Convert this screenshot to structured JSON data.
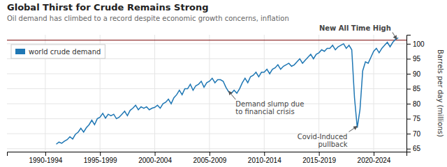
{
  "chart_data": {
    "type": "line",
    "title": "Global Thirst for Crude Remains Strong",
    "subtitle": "Oil demand has climbed to a record despite economic growth concerns, inflation",
    "ylabel": "Barrels per day (millions)",
    "x": [
      1993.0,
      1993.25,
      1993.5,
      1993.75,
      1994.0,
      1994.25,
      1994.5,
      1994.75,
      1995.0,
      1995.25,
      1995.5,
      1995.75,
      1996.0,
      1996.25,
      1996.5,
      1996.75,
      1997.0,
      1997.25,
      1997.5,
      1997.75,
      1998.0,
      1998.25,
      1998.5,
      1998.75,
      1999.0,
      1999.25,
      1999.5,
      1999.75,
      2000.0,
      2000.25,
      2000.5,
      2000.75,
      2001.0,
      2001.25,
      2001.5,
      2001.75,
      2002.0,
      2002.25,
      2002.5,
      2002.75,
      2003.0,
      2003.25,
      2003.5,
      2003.75,
      2004.0,
      2004.25,
      2004.5,
      2004.75,
      2005.0,
      2005.25,
      2005.5,
      2005.75,
      2006.0,
      2006.25,
      2006.5,
      2006.75,
      2007.0,
      2007.25,
      2007.5,
      2007.75,
      2008.0,
      2008.25,
      2008.5,
      2008.75,
      2009.0,
      2009.25,
      2009.5,
      2009.75,
      2010.0,
      2010.25,
      2010.5,
      2010.75,
      2011.0,
      2011.25,
      2011.5,
      2011.75,
      2012.0,
      2012.25,
      2012.5,
      2012.75,
      2013.0,
      2013.25,
      2013.5,
      2013.75,
      2014.0,
      2014.25,
      2014.5,
      2014.75,
      2015.0,
      2015.25,
      2015.5,
      2015.75,
      2016.0,
      2016.25,
      2016.5,
      2016.75,
      2017.0,
      2017.25,
      2017.5,
      2017.75,
      2018.0,
      2018.25,
      2018.5,
      2018.75,
      2019.0,
      2019.25,
      2019.5,
      2019.75,
      2020.0,
      2020.25,
      2020.5,
      2020.75,
      2021.0,
      2021.25,
      2021.5,
      2021.75,
      2022.0,
      2022.25,
      2022.5,
      2022.75,
      2023.0,
      2023.25,
      2023.5,
      2023.75,
      2024.0,
      2024.25
    ],
    "series": [
      {
        "name": "world crude demand",
        "values": [
          66.5,
          67.2,
          66.8,
          67.5,
          68.0,
          69.0,
          68.2,
          69.8,
          70.5,
          71.8,
          70.5,
          72.0,
          73.0,
          74.5,
          73.0,
          75.0,
          75.5,
          76.8,
          75.2,
          76.5,
          76.0,
          76.5,
          75.0,
          75.5,
          76.5,
          77.5,
          76.0,
          77.8,
          78.5,
          79.5,
          78.0,
          79.0,
          78.5,
          79.0,
          78.0,
          78.5,
          78.8,
          79.5,
          78.5,
          80.0,
          80.5,
          81.5,
          80.0,
          82.0,
          83.0,
          84.5,
          83.0,
          85.0,
          85.0,
          86.5,
          84.5,
          86.0,
          86.5,
          87.5,
          85.5,
          87.0,
          87.5,
          88.5,
          87.0,
          88.0,
          88.0,
          87.5,
          85.5,
          84.0,
          83.5,
          84.5,
          83.5,
          85.0,
          87.0,
          88.5,
          87.0,
          89.0,
          89.5,
          90.5,
          89.0,
          90.5,
          90.5,
          91.5,
          90.0,
          91.5,
          92.0,
          93.0,
          91.5,
          92.5,
          93.0,
          93.5,
          92.5,
          93.0,
          94.0,
          95.0,
          93.5,
          94.5,
          95.5,
          96.5,
          95.0,
          96.5,
          97.0,
          98.0,
          97.5,
          98.5,
          98.5,
          99.5,
          98.0,
          99.0,
          99.5,
          100.0,
          98.5,
          99.5,
          98.0,
          82.0,
          72.0,
          78.0,
          91.0,
          94.0,
          93.5,
          95.5,
          97.5,
          98.5,
          97.0,
          98.5,
          99.5,
          100.5,
          99.0,
          100.5,
          101.5,
          102.0
        ]
      }
    ],
    "xlim": [
      1988.5,
      2025
    ],
    "xticks": [
      {
        "value": 1992,
        "label": "1990-1994"
      },
      {
        "value": 1997,
        "label": "1995-1999"
      },
      {
        "value": 2002,
        "label": "2000-2004"
      },
      {
        "value": 2007,
        "label": "2005-2009"
      },
      {
        "value": 2012,
        "label": "2010-2014"
      },
      {
        "value": 2017,
        "label": "2015-2019"
      },
      {
        "value": 2022,
        "label": "2020-2024"
      }
    ],
    "ylim": [
      64,
      103
    ],
    "yticks": [
      65,
      70,
      75,
      80,
      85,
      90,
      95,
      100
    ],
    "grid": true,
    "legend": "upper left",
    "hlines": [
      {
        "y": 101.2,
        "color": "#7a0000"
      }
    ],
    "annotations": [
      {
        "text": "Demand slump due\nto financial crisis",
        "x": 2008.75,
        "y": 84.2
      },
      {
        "text": "Covid-Induced\npullback",
        "x": 2020.5,
        "y": 72.5
      },
      {
        "text": "New All Time High",
        "x": 2024.1,
        "y": 101.5
      }
    ]
  }
}
